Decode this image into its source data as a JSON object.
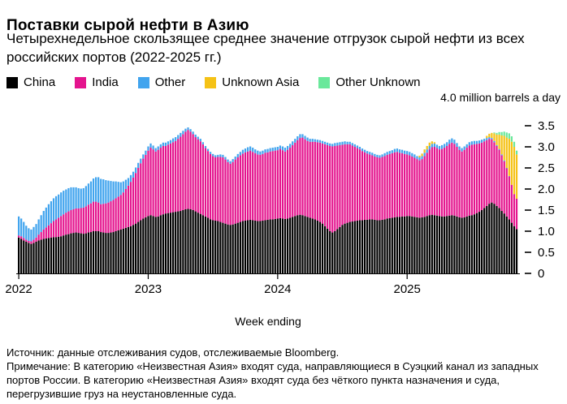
{
  "title": "Поставки сырой нефти в Азию",
  "subtitle": "Четырехнедельное скользящее среднее значение отгрузок сырой нефти из всех российских портов (2022-2025 гг.)",
  "legend": [
    {
      "label": "China",
      "color": "#000000"
    },
    {
      "label": "India",
      "color": "#E4148E"
    },
    {
      "label": "Other",
      "color": "#41A4EE"
    },
    {
      "label": "Unknown Asia",
      "color": "#F5C216"
    },
    {
      "label": "Other Unknown",
      "color": "#6AE89B"
    }
  ],
  "axis_note": "4.0 million barrels a day",
  "xlabel": "Week ending",
  "source": "Источник: данные отслеживания судов, отслеживаемые Bloomberg.",
  "note": "Примечание: В категорию «Неизвестная Азия» входят суда, направляющиеся в Суэцкий канал из западных портов России. В категорию «Неизвестная Азия» входят суда без чёткого пункта назначения и суда, перегрузившие груз на неустановленные суда.",
  "chart_data": {
    "type": "bar",
    "stacked": true,
    "frequency": "weekly",
    "x_range": "Jan 2022 – Nov 2025",
    "x_years": [
      {
        "label": "2022",
        "week_index": 0
      },
      {
        "label": "2023",
        "week_index": 52
      },
      {
        "label": "2024",
        "week_index": 104
      },
      {
        "label": "2025",
        "week_index": 156
      }
    ],
    "ylim": [
      0,
      4.0
    ],
    "yticks": [
      "3.5",
      "3.0",
      "2.5",
      "2.0",
      "1.5",
      "1.0",
      "0.5",
      "0"
    ],
    "units": "million barrels a day",
    "series": [
      {
        "name": "China",
        "color": "#000000",
        "values": [
          0.85,
          0.82,
          0.78,
          0.75,
          0.72,
          0.7,
          0.72,
          0.75,
          0.78,
          0.8,
          0.82,
          0.83,
          0.84,
          0.85,
          0.86,
          0.86,
          0.87,
          0.88,
          0.9,
          0.92,
          0.93,
          0.95,
          0.96,
          0.97,
          0.96,
          0.95,
          0.94,
          0.95,
          0.97,
          0.98,
          1.0,
          1.0,
          1.0,
          0.98,
          0.97,
          0.96,
          0.96,
          0.97,
          0.98,
          1.0,
          1.02,
          1.04,
          1.06,
          1.08,
          1.1,
          1.12,
          1.15,
          1.18,
          1.22,
          1.26,
          1.3,
          1.33,
          1.36,
          1.38,
          1.36,
          1.34,
          1.35,
          1.38,
          1.4,
          1.42,
          1.43,
          1.44,
          1.45,
          1.46,
          1.47,
          1.48,
          1.5,
          1.52,
          1.53,
          1.52,
          1.5,
          1.47,
          1.44,
          1.41,
          1.38,
          1.35,
          1.32,
          1.28,
          1.26,
          1.25,
          1.24,
          1.22,
          1.2,
          1.18,
          1.16,
          1.15,
          1.16,
          1.18,
          1.2,
          1.22,
          1.24,
          1.25,
          1.26,
          1.27,
          1.26,
          1.25,
          1.24,
          1.24,
          1.25,
          1.26,
          1.27,
          1.28,
          1.28,
          1.29,
          1.3,
          1.31,
          1.3,
          1.29,
          1.3,
          1.32,
          1.34,
          1.36,
          1.38,
          1.39,
          1.38,
          1.36,
          1.34,
          1.32,
          1.3,
          1.28,
          1.25,
          1.22,
          1.18,
          1.12,
          1.06,
          1.0,
          0.97,
          1.0,
          1.05,
          1.1,
          1.15,
          1.18,
          1.2,
          1.22,
          1.23,
          1.24,
          1.25,
          1.26,
          1.26,
          1.27,
          1.27,
          1.28,
          1.28,
          1.27,
          1.26,
          1.26,
          1.27,
          1.28,
          1.3,
          1.31,
          1.32,
          1.33,
          1.34,
          1.34,
          1.35,
          1.35,
          1.36,
          1.36,
          1.35,
          1.34,
          1.33,
          1.32,
          1.33,
          1.34,
          1.36,
          1.38,
          1.39,
          1.38,
          1.37,
          1.36,
          1.35,
          1.35,
          1.36,
          1.37,
          1.38,
          1.37,
          1.35,
          1.33,
          1.32,
          1.33,
          1.35,
          1.37,
          1.38,
          1.4,
          1.43,
          1.46,
          1.5,
          1.55,
          1.6,
          1.65,
          1.68,
          1.65,
          1.6,
          1.55,
          1.48,
          1.42,
          1.35,
          1.28,
          1.2,
          1.12,
          1.05
        ]
      },
      {
        "name": "India",
        "color": "#E4148E",
        "values": [
          0.05,
          0.06,
          0.06,
          0.05,
          0.05,
          0.06,
          0.08,
          0.1,
          0.14,
          0.18,
          0.22,
          0.26,
          0.3,
          0.34,
          0.38,
          0.42,
          0.45,
          0.48,
          0.5,
          0.52,
          0.54,
          0.55,
          0.56,
          0.57,
          0.58,
          0.6,
          0.62,
          0.64,
          0.66,
          0.68,
          0.7,
          0.7,
          0.68,
          0.66,
          0.68,
          0.7,
          0.72,
          0.74,
          0.76,
          0.78,
          0.8,
          0.82,
          0.86,
          0.92,
          0.98,
          1.05,
          1.12,
          1.2,
          1.28,
          1.35,
          1.42,
          1.48,
          1.55,
          1.6,
          1.58,
          1.55,
          1.58,
          1.6,
          1.62,
          1.6,
          1.62,
          1.64,
          1.66,
          1.68,
          1.72,
          1.76,
          1.8,
          1.84,
          1.87,
          1.84,
          1.8,
          1.76,
          1.74,
          1.72,
          1.68,
          1.62,
          1.58,
          1.55,
          1.52,
          1.5,
          1.52,
          1.54,
          1.55,
          1.52,
          1.48,
          1.45,
          1.48,
          1.52,
          1.55,
          1.58,
          1.6,
          1.62,
          1.63,
          1.64,
          1.62,
          1.6,
          1.58,
          1.57,
          1.58,
          1.6,
          1.6,
          1.61,
          1.62,
          1.62,
          1.62,
          1.64,
          1.62,
          1.6,
          1.63,
          1.66,
          1.7,
          1.74,
          1.78,
          1.82,
          1.84,
          1.82,
          1.8,
          1.8,
          1.82,
          1.84,
          1.86,
          1.88,
          1.9,
          1.94,
          1.98,
          2.02,
          2.04,
          2.02,
          1.98,
          1.94,
          1.9,
          1.88,
          1.86,
          1.84,
          1.8,
          1.76,
          1.72,
          1.68,
          1.64,
          1.6,
          1.57,
          1.54,
          1.52,
          1.5,
          1.49,
          1.48,
          1.49,
          1.5,
          1.51,
          1.52,
          1.53,
          1.54,
          1.54,
          1.52,
          1.5,
          1.48,
          1.46,
          1.44,
          1.42,
          1.4,
          1.38,
          1.36,
          1.38,
          1.44,
          1.5,
          1.56,
          1.6,
          1.62,
          1.6,
          1.58,
          1.6,
          1.63,
          1.66,
          1.7,
          1.72,
          1.7,
          1.65,
          1.6,
          1.57,
          1.6,
          1.63,
          1.66,
          1.67,
          1.66,
          1.64,
          1.62,
          1.6,
          1.58,
          1.56,
          1.54,
          1.5,
          1.46,
          1.42,
          1.38,
          1.32,
          1.24,
          1.14,
          1.02,
          0.9,
          0.76,
          0.72
        ]
      },
      {
        "name": "Other",
        "color": "#41A4EE",
        "values": [
          0.45,
          0.42,
          0.38,
          0.33,
          0.3,
          0.28,
          0.3,
          0.32,
          0.36,
          0.4,
          0.44,
          0.47,
          0.5,
          0.52,
          0.54,
          0.55,
          0.55,
          0.56,
          0.56,
          0.55,
          0.55,
          0.54,
          0.52,
          0.5,
          0.48,
          0.46,
          0.46,
          0.48,
          0.5,
          0.52,
          0.55,
          0.58,
          0.6,
          0.6,
          0.58,
          0.55,
          0.52,
          0.48,
          0.44,
          0.4,
          0.35,
          0.3,
          0.26,
          0.22,
          0.18,
          0.16,
          0.14,
          0.13,
          0.12,
          0.11,
          0.1,
          0.1,
          0.1,
          0.1,
          0.09,
          0.08,
          0.08,
          0.08,
          0.08,
          0.08,
          0.08,
          0.08,
          0.09,
          0.09,
          0.09,
          0.09,
          0.08,
          0.07,
          0.06,
          0.06,
          0.06,
          0.06,
          0.06,
          0.06,
          0.05,
          0.05,
          0.05,
          0.05,
          0.05,
          0.05,
          0.05,
          0.06,
          0.06,
          0.06,
          0.06,
          0.06,
          0.07,
          0.07,
          0.08,
          0.08,
          0.09,
          0.09,
          0.1,
          0.1,
          0.1,
          0.09,
          0.09,
          0.08,
          0.08,
          0.08,
          0.08,
          0.08,
          0.08,
          0.08,
          0.08,
          0.08,
          0.09,
          0.09,
          0.09,
          0.09,
          0.09,
          0.09,
          0.09,
          0.09,
          0.08,
          0.08,
          0.08,
          0.07,
          0.07,
          0.06,
          0.06,
          0.06,
          0.06,
          0.06,
          0.06,
          0.06,
          0.06,
          0.07,
          0.07,
          0.07,
          0.07,
          0.07,
          0.06,
          0.06,
          0.06,
          0.06,
          0.06,
          0.06,
          0.06,
          0.06,
          0.06,
          0.06,
          0.06,
          0.06,
          0.06,
          0.06,
          0.06,
          0.07,
          0.07,
          0.07,
          0.07,
          0.08,
          0.08,
          0.08,
          0.08,
          0.08,
          0.08,
          0.08,
          0.08,
          0.08,
          0.07,
          0.07,
          0.07,
          0.08,
          0.08,
          0.08,
          0.08,
          0.08,
          0.08,
          0.08,
          0.09,
          0.09,
          0.09,
          0.1,
          0.1,
          0.1,
          0.09,
          0.08,
          0.08,
          0.08,
          0.08,
          0.08,
          0.08,
          0.08,
          0.07,
          0.07,
          0.07,
          0.06,
          0.05,
          0.04,
          0.03,
          0.03,
          0.02,
          0.02,
          0.02,
          0.02,
          0.01,
          0.01,
          0,
          0,
          0
        ]
      },
      {
        "name": "Unknown Asia",
        "color": "#F5C216",
        "values": [
          0,
          0,
          0,
          0,
          0,
          0,
          0,
          0,
          0,
          0,
          0,
          0,
          0,
          0,
          0,
          0,
          0,
          0,
          0,
          0,
          0,
          0,
          0,
          0,
          0,
          0,
          0,
          0,
          0,
          0,
          0,
          0,
          0,
          0,
          0,
          0,
          0,
          0,
          0,
          0,
          0,
          0,
          0,
          0,
          0,
          0,
          0,
          0,
          0,
          0,
          0,
          0,
          0,
          0,
          0,
          0,
          0,
          0,
          0,
          0,
          0,
          0,
          0,
          0,
          0,
          0,
          0,
          0,
          0,
          0,
          0,
          0,
          0,
          0,
          0,
          0,
          0,
          0,
          0,
          0,
          0,
          0,
          0,
          0,
          0,
          0,
          0,
          0,
          0,
          0,
          0,
          0,
          0,
          0,
          0,
          0,
          0,
          0,
          0,
          0,
          0,
          0,
          0,
          0,
          0,
          0,
          0,
          0,
          0,
          0,
          0,
          0,
          0,
          0,
          0,
          0,
          0,
          0,
          0,
          0,
          0,
          0,
          0,
          0,
          0,
          0,
          0,
          0,
          0,
          0,
          0,
          0,
          0,
          0,
          0,
          0,
          0,
          0,
          0,
          0,
          0,
          0,
          0,
          0,
          0,
          0,
          0,
          0,
          0,
          0,
          0,
          0,
          0,
          0,
          0,
          0,
          0,
          0,
          0,
          0,
          0,
          0.04,
          0.06,
          0.08,
          0.08,
          0.08,
          0.06,
          0.03,
          0,
          0,
          0,
          0,
          0,
          0,
          0,
          0,
          0,
          0,
          0,
          0,
          0,
          0,
          0,
          0,
          0,
          0,
          0,
          0,
          0.05,
          0.08,
          0.12,
          0.18,
          0.25,
          0.34,
          0.45,
          0.58,
          0.72,
          0.88,
          1.02,
          1.12,
          1.05
        ]
      },
      {
        "name": "Other Unknown",
        "color": "#6AE89B",
        "values": [
          0,
          0,
          0,
          0,
          0,
          0,
          0,
          0,
          0,
          0,
          0,
          0,
          0,
          0,
          0,
          0,
          0,
          0,
          0,
          0,
          0,
          0,
          0,
          0,
          0,
          0,
          0,
          0,
          0,
          0,
          0,
          0,
          0,
          0,
          0,
          0,
          0,
          0,
          0,
          0,
          0,
          0,
          0,
          0,
          0,
          0,
          0,
          0,
          0,
          0,
          0,
          0,
          0,
          0,
          0,
          0,
          0,
          0,
          0,
          0,
          0,
          0,
          0,
          0,
          0,
          0,
          0,
          0,
          0,
          0,
          0,
          0,
          0,
          0,
          0,
          0,
          0,
          0,
          0,
          0,
          0,
          0,
          0,
          0,
          0,
          0,
          0,
          0,
          0,
          0,
          0,
          0,
          0,
          0,
          0,
          0,
          0,
          0,
          0,
          0,
          0,
          0,
          0,
          0,
          0,
          0,
          0,
          0,
          0,
          0,
          0,
          0,
          0,
          0,
          0,
          0,
          0,
          0,
          0,
          0,
          0,
          0,
          0,
          0,
          0,
          0,
          0,
          0,
          0,
          0,
          0,
          0,
          0,
          0,
          0,
          0,
          0,
          0,
          0,
          0,
          0,
          0,
          0,
          0,
          0,
          0,
          0,
          0,
          0,
          0,
          0,
          0,
          0,
          0,
          0,
          0,
          0,
          0,
          0,
          0,
          0,
          0,
          0,
          0,
          0,
          0,
          0,
          0,
          0,
          0,
          0,
          0,
          0,
          0,
          0,
          0,
          0,
          0,
          0,
          0,
          0,
          0,
          0,
          0,
          0,
          0,
          0,
          0,
          0,
          0,
          0,
          0.02,
          0.04,
          0.06,
          0.08,
          0.1,
          0.12,
          0.13,
          0.13,
          0.12,
          0.09
        ]
      }
    ]
  }
}
